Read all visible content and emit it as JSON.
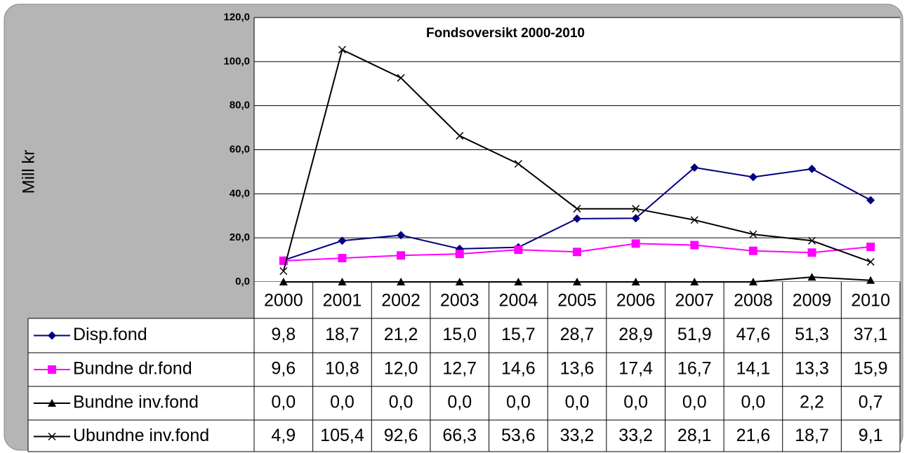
{
  "chart_data": {
    "type": "line",
    "title": "Fondsoversikt 2000-2010",
    "y_label": "Mill kr",
    "categories": [
      "2000",
      "2001",
      "2002",
      "2003",
      "2004",
      "2005",
      "2006",
      "2007",
      "2008",
      "2009",
      "2010"
    ],
    "ylim": [
      0,
      120
    ],
    "yticks": [
      {
        "value": 0,
        "label": "0,0"
      },
      {
        "value": 20,
        "label": "20,0"
      },
      {
        "value": 40,
        "label": "40,0"
      },
      {
        "value": 60,
        "label": "60,0"
      },
      {
        "value": 80,
        "label": "80,0"
      },
      {
        "value": 100,
        "label": "100,0"
      },
      {
        "value": 120,
        "label": "120,0"
      }
    ],
    "grid": true,
    "series": [
      {
        "name": "Disp.fond",
        "color": "#000080",
        "marker": "diamond",
        "values": [
          9.8,
          18.7,
          21.2,
          15.0,
          15.7,
          28.7,
          28.9,
          51.9,
          47.6,
          51.3,
          37.1
        ],
        "value_labels": [
          "9,8",
          "18,7",
          "21,2",
          "15,0",
          "15,7",
          "28,7",
          "28,9",
          "51,9",
          "47,6",
          "51,3",
          "37,1"
        ]
      },
      {
        "name": "Bundne dr.fond",
        "color": "#ff00ff",
        "marker": "square",
        "values": [
          9.6,
          10.8,
          12.0,
          12.7,
          14.6,
          13.6,
          17.4,
          16.7,
          14.1,
          13.3,
          15.9
        ],
        "value_labels": [
          "9,6",
          "10,8",
          "12,0",
          "12,7",
          "14,6",
          "13,6",
          "17,4",
          "16,7",
          "14,1",
          "13,3",
          "15,9"
        ]
      },
      {
        "name": "Bundne inv.fond",
        "color": "#000000",
        "marker": "triangle",
        "values": [
          0.0,
          0.0,
          0.0,
          0.0,
          0.0,
          0.0,
          0.0,
          0.0,
          0.0,
          2.2,
          0.7
        ],
        "value_labels": [
          "0,0",
          "0,0",
          "0,0",
          "0,0",
          "0,0",
          "0,0",
          "0,0",
          "0,0",
          "0,0",
          "2,2",
          "0,7"
        ]
      },
      {
        "name": "Ubundne inv.fond",
        "color": "#000000",
        "marker": "x",
        "values": [
          4.9,
          105.4,
          92.6,
          66.3,
          53.6,
          33.2,
          33.2,
          28.1,
          21.6,
          18.7,
          9.1
        ],
        "value_labels": [
          "4,9",
          "105,4",
          "92,6",
          "66,3",
          "53,6",
          "33,2",
          "33,2",
          "28,1",
          "21,6",
          "18,7",
          "9,1"
        ]
      }
    ]
  }
}
